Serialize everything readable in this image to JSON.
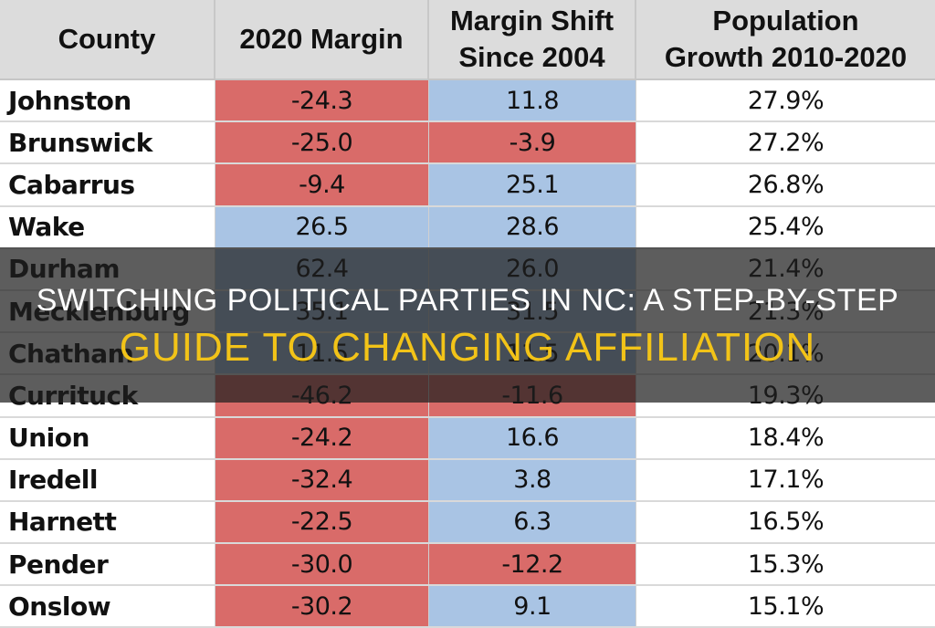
{
  "table": {
    "headers": [
      "County",
      "2020 Margin",
      "Margin Shift\nSince 2004",
      "Population\nGrowth 2010-2020"
    ],
    "header_lines": [
      [
        "County"
      ],
      [
        "2020 Margin"
      ],
      [
        "Margin Shift",
        "Since 2004"
      ],
      [
        "Population",
        "Growth 2010-2020"
      ]
    ],
    "rows": [
      {
        "county": "Johnston",
        "margin_2020": "-24.3",
        "margin_shift": "11.8",
        "pop_growth": "27.9%"
      },
      {
        "county": "Brunswick",
        "margin_2020": "-25.0",
        "margin_shift": "-3.9",
        "pop_growth": "27.2%"
      },
      {
        "county": "Cabarrus",
        "margin_2020": "-9.4",
        "margin_shift": "25.1",
        "pop_growth": "26.8%"
      },
      {
        "county": "Wake",
        "margin_2020": "26.5",
        "margin_shift": "28.6",
        "pop_growth": "25.4%"
      },
      {
        "county": "Durham",
        "margin_2020": "62.4",
        "margin_shift": "26.0",
        "pop_growth": "21.4%"
      },
      {
        "county": "Mecklenburg",
        "margin_2020": "35.1",
        "margin_shift": "31.5",
        "pop_growth": "21.3%"
      },
      {
        "county": "Chatham",
        "margin_2020": "11.5",
        "margin_shift": "11.5",
        "pop_growth": "20.1%"
      },
      {
        "county": "Currituck",
        "margin_2020": "-46.2",
        "margin_shift": "-11.6",
        "pop_growth": "19.3%"
      },
      {
        "county": "Union",
        "margin_2020": "-24.2",
        "margin_shift": "16.6",
        "pop_growth": "18.4%"
      },
      {
        "county": "Iredell",
        "margin_2020": "-32.4",
        "margin_shift": "3.8",
        "pop_growth": "17.1%"
      },
      {
        "county": "Harnett",
        "margin_2020": "-22.5",
        "margin_shift": "6.3",
        "pop_growth": "16.5%"
      },
      {
        "county": "Pender",
        "margin_2020": "-30.0",
        "margin_shift": "-12.2",
        "pop_growth": "15.3%"
      },
      {
        "county": "Onslow",
        "margin_2020": "-30.2",
        "margin_shift": "9.1",
        "pop_growth": "15.1%"
      }
    ]
  },
  "colors": {
    "republican_red": "#d96b69",
    "democrat_blue": "#a9c4e4",
    "header_gray": "#dcdcdc",
    "title_white": "#ffffff",
    "title_gold": "#f2c318"
  },
  "overlay": {
    "title_line1": "SWITCHING POLITICAL PARTIES IN NC: A STEP-BY-STEP",
    "title_line2": "GUIDE TO CHANGING AFFILIATION"
  }
}
